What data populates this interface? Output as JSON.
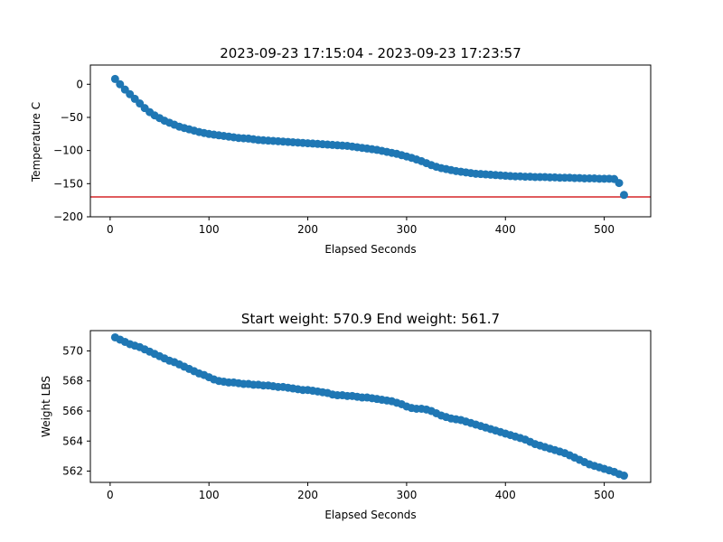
{
  "chart_data": [
    {
      "type": "scatter",
      "title": "2023-09-23 17:15:04 - 2023-09-23 17:23:57",
      "xlabel": "Elapsed Seconds",
      "ylabel": "Temperature C",
      "xlim": [
        -20,
        547
      ],
      "ylim": [
        -200,
        29
      ],
      "xticks": [
        0,
        100,
        200,
        300,
        400,
        500
      ],
      "yticks": [
        0,
        -50,
        -100,
        -150,
        -200
      ],
      "grid": false,
      "marker_color": "#1f77b4",
      "reference_line": {
        "y": -170,
        "color": "#d62728"
      },
      "series": [
        {
          "x": [
            5,
            10,
            15,
            20,
            25,
            30,
            35,
            40,
            45,
            50,
            55,
            60,
            65,
            70,
            75,
            80,
            85,
            90,
            95,
            100,
            105,
            110,
            115,
            120,
            125,
            130,
            135,
            140,
            145,
            150,
            155,
            160,
            165,
            170,
            175,
            180,
            185,
            190,
            195,
            200,
            205,
            210,
            215,
            220,
            225,
            230,
            235,
            240,
            245,
            250,
            255,
            260,
            265,
            270,
            275,
            280,
            285,
            290,
            295,
            300,
            305,
            310,
            315,
            320,
            325,
            330,
            335,
            340,
            345,
            350,
            355,
            360,
            365,
            370,
            375,
            380,
            385,
            390,
            395,
            400,
            405,
            410,
            415,
            420,
            425,
            430,
            435,
            440,
            445,
            450,
            455,
            460,
            465,
            470,
            475,
            480,
            485,
            490,
            495,
            500,
            505,
            510,
            515,
            520
          ],
          "y": [
            8,
            0,
            -8,
            -15,
            -22,
            -29,
            -36,
            -42,
            -47,
            -51,
            -55,
            -58,
            -61,
            -64,
            -66,
            -68,
            -70,
            -72,
            -73.5,
            -75,
            -76,
            -77,
            -78,
            -79,
            -80,
            -81,
            -81.5,
            -82,
            -83,
            -84,
            -84.5,
            -85,
            -85.5,
            -86,
            -86.5,
            -87,
            -87.5,
            -88,
            -88.5,
            -89,
            -89.5,
            -90,
            -90.5,
            -91,
            -91.5,
            -92,
            -92.5,
            -93,
            -94,
            -95,
            -96,
            -97,
            -98,
            -99,
            -100.5,
            -102,
            -103.5,
            -105,
            -107,
            -109,
            -111,
            -113.5,
            -116,
            -119,
            -122,
            -124.5,
            -126.5,
            -128,
            -129.5,
            -131,
            -132,
            -133,
            -134,
            -135,
            -135.5,
            -136,
            -136.5,
            -137,
            -137.5,
            -138,
            -138.5,
            -139,
            -139,
            -139.5,
            -139.5,
            -140,
            -140,
            -140,
            -140.5,
            -140.5,
            -141,
            -141,
            -141,
            -141.5,
            -141.5,
            -142,
            -142,
            -142,
            -142.5,
            -142.5,
            -142.5,
            -143,
            -149,
            -167
          ]
        }
      ]
    },
    {
      "type": "scatter",
      "title": "Start weight: 570.9 End weight: 561.7",
      "xlabel": "Elapsed Seconds",
      "ylabel": "Weight LBS",
      "xlim": [
        -20,
        547
      ],
      "ylim": [
        561.25,
        571.35
      ],
      "xticks": [
        0,
        100,
        200,
        300,
        400,
        500
      ],
      "yticks": [
        562,
        564,
        566,
        568,
        570
      ],
      "grid": false,
      "marker_color": "#1f77b4",
      "series": [
        {
          "x": [
            5,
            10,
            15,
            20,
            25,
            30,
            35,
            40,
            45,
            50,
            55,
            60,
            65,
            70,
            75,
            80,
            85,
            90,
            95,
            100,
            105,
            110,
            115,
            120,
            125,
            130,
            135,
            140,
            145,
            150,
            155,
            160,
            165,
            170,
            175,
            180,
            185,
            190,
            195,
            200,
            205,
            210,
            215,
            220,
            225,
            230,
            235,
            240,
            245,
            250,
            255,
            260,
            265,
            270,
            275,
            280,
            285,
            290,
            295,
            300,
            305,
            310,
            315,
            320,
            325,
            330,
            335,
            340,
            345,
            350,
            355,
            360,
            365,
            370,
            375,
            380,
            385,
            390,
            395,
            400,
            405,
            410,
            415,
            420,
            425,
            430,
            435,
            440,
            445,
            450,
            455,
            460,
            465,
            470,
            475,
            480,
            485,
            490,
            495,
            500,
            505,
            510,
            515,
            520
          ],
          "y": [
            570.9,
            570.75,
            570.6,
            570.45,
            570.35,
            570.25,
            570.1,
            569.95,
            569.8,
            569.65,
            569.5,
            569.35,
            569.25,
            569.1,
            568.95,
            568.8,
            568.65,
            568.5,
            568.4,
            568.25,
            568.1,
            568.0,
            567.95,
            567.9,
            567.9,
            567.85,
            567.8,
            567.8,
            567.75,
            567.75,
            567.7,
            567.7,
            567.65,
            567.6,
            567.6,
            567.55,
            567.5,
            567.45,
            567.4,
            567.4,
            567.35,
            567.3,
            567.25,
            567.2,
            567.1,
            567.05,
            567.05,
            567.0,
            567.0,
            566.95,
            566.9,
            566.9,
            566.85,
            566.8,
            566.75,
            566.7,
            566.65,
            566.55,
            566.45,
            566.3,
            566.2,
            566.15,
            566.15,
            566.1,
            566.0,
            565.85,
            565.7,
            565.6,
            565.5,
            565.45,
            565.4,
            565.3,
            565.2,
            565.1,
            565.0,
            564.9,
            564.8,
            564.7,
            564.6,
            564.5,
            564.4,
            564.3,
            564.2,
            564.1,
            563.95,
            563.8,
            563.7,
            563.6,
            563.5,
            563.4,
            563.3,
            563.2,
            563.05,
            562.9,
            562.75,
            562.6,
            562.45,
            562.35,
            562.25,
            562.15,
            562.05,
            561.95,
            561.8,
            561.7
          ]
        }
      ]
    }
  ]
}
